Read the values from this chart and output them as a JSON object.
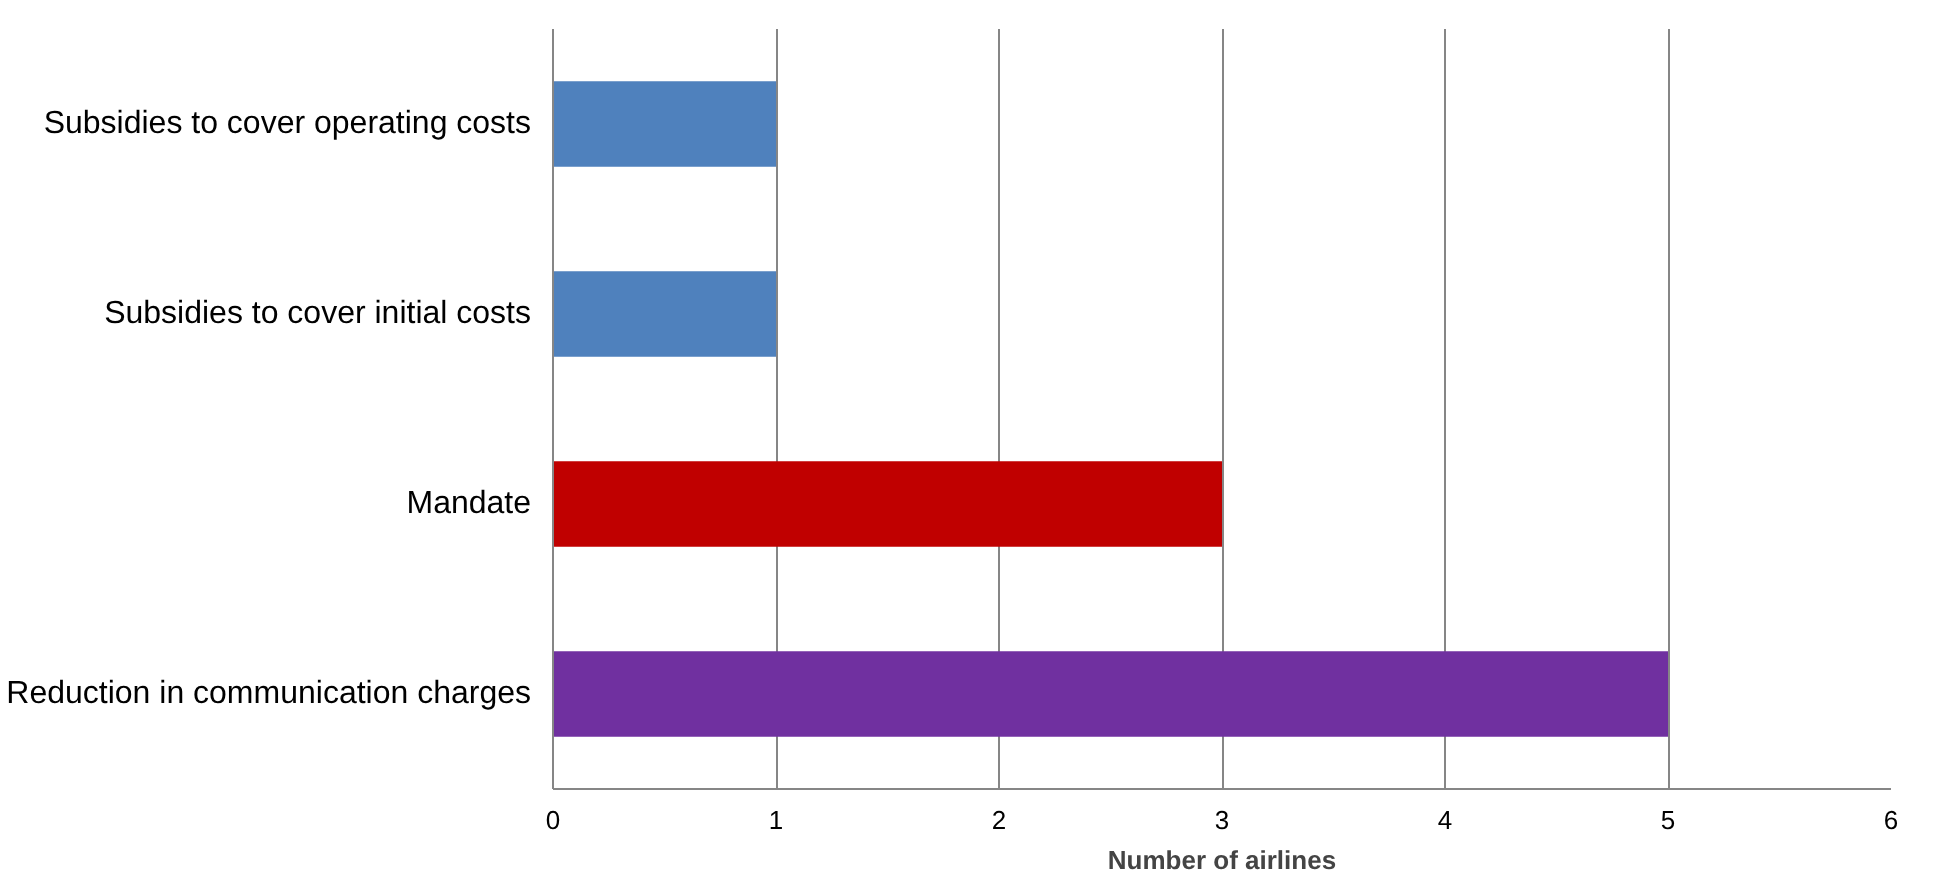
{
  "chart_data": {
    "type": "bar",
    "orientation": "horizontal",
    "categories": [
      "Subsidies to cover operating costs",
      "Subsidies to cover initial costs",
      "Mandate",
      "Reduction in communication charges"
    ],
    "values": [
      1,
      1,
      3,
      5
    ],
    "colors": [
      "#4f81bd",
      "#4f81bd",
      "#c00000",
      "#7030a0"
    ],
    "xlabel": "Number of airlines",
    "xlim": [
      0,
      6
    ],
    "xticks": [
      0,
      1,
      2,
      3,
      4,
      5,
      6
    ],
    "grid": "x"
  }
}
